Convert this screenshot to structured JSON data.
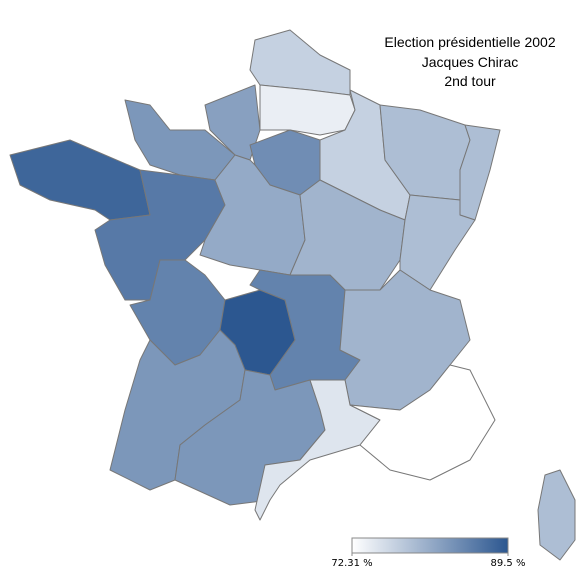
{
  "chart_data": {
    "type": "choropleth",
    "title": [
      "Election présidentielle 2002",
      "Jacques Chirac",
      "2nd tour"
    ],
    "values": [
      77,
      74,
      82,
      83,
      84,
      77,
      79,
      79,
      88,
      86,
      81,
      80,
      79,
      85,
      89.5,
      85,
      80,
      83,
      83,
      75,
      72.31,
      79
    ],
    "colorscale": [
      "#ffffff",
      "#2c5790"
    ],
    "clim": [
      72.31,
      89.5
    ],
    "colorbar_ticks": [
      {
        "value": 72.31,
        "label": "72.31 %"
      },
      {
        "value": 89.5,
        "label": "89.5 %"
      }
    ]
  }
}
